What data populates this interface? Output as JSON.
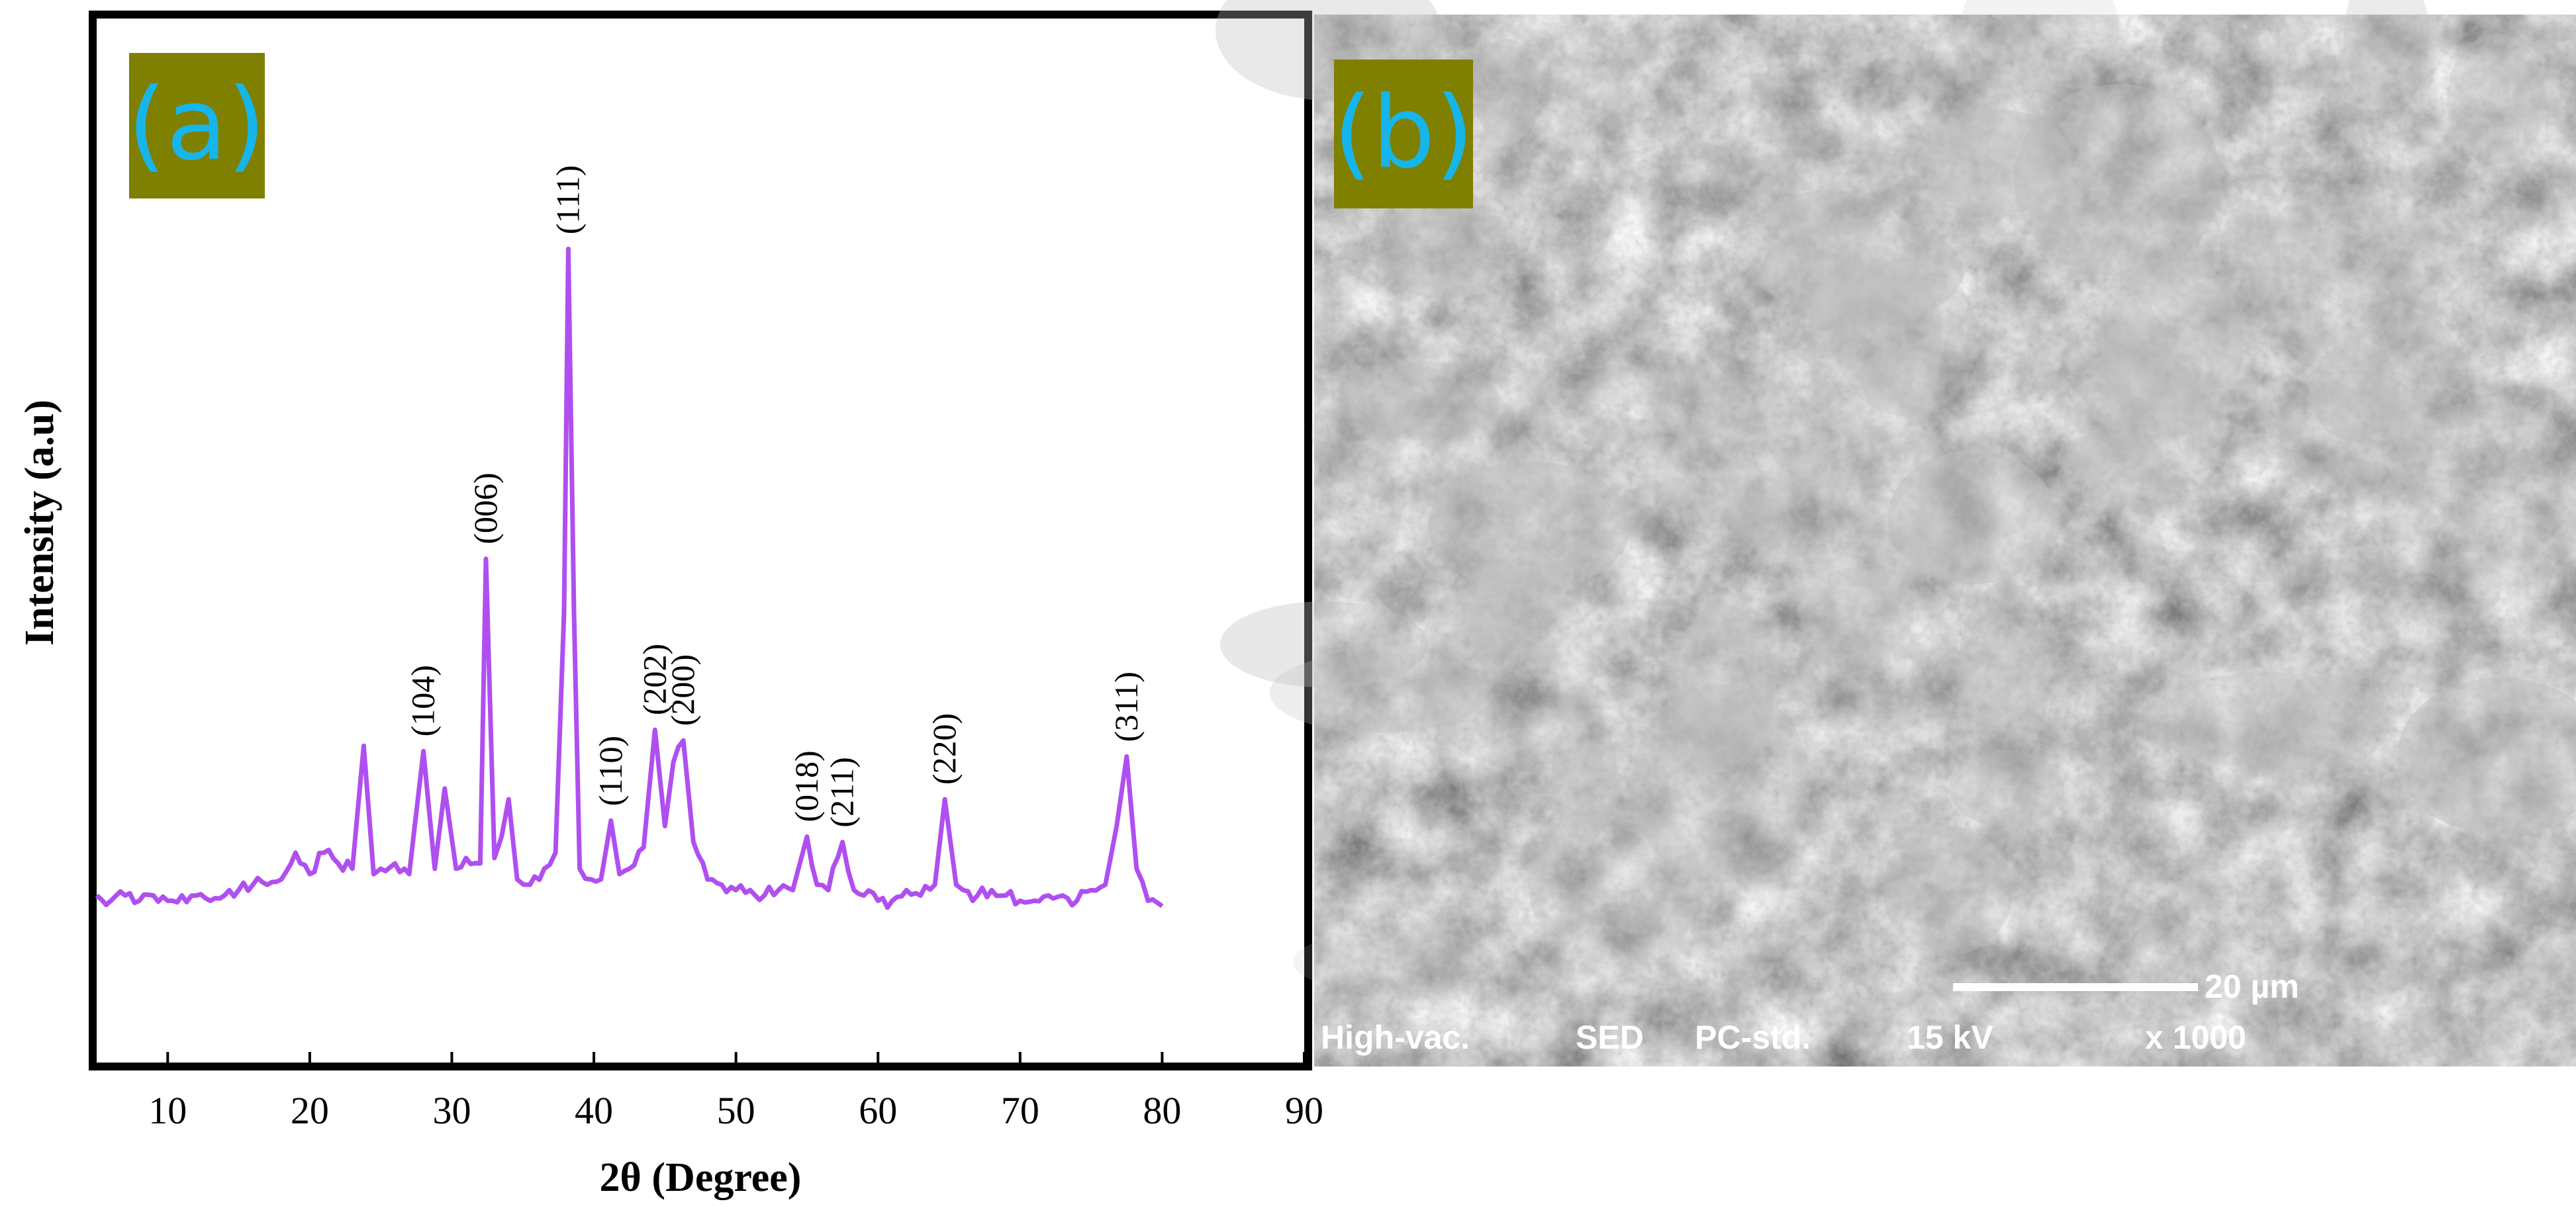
{
  "panel_a": {
    "label": "(a)",
    "label_bg_color": "#7f7f00",
    "label_text_color": "#16b5ea"
  },
  "panel_b": {
    "label": "(b)",
    "label_bg_color": "#7f7f00",
    "label_text_color": "#16b5ea",
    "image_description_colors": {
      "background": "#4a4a4a",
      "particles": "#bdbdbd"
    },
    "scale_bar": {
      "label": "20 µm"
    },
    "info_bar": [
      "High-vac.",
      "SED",
      "PC-std.",
      "15 kV",
      "x 1000"
    ]
  },
  "chart_data": {
    "type": "line",
    "xlabel": "2θ (Degree)",
    "ylabel": "Intensity (a.u)",
    "xlim": [
      5,
      90
    ],
    "xticks": [
      10,
      20,
      30,
      40,
      50,
      60,
      70,
      80,
      90
    ],
    "ylim": [
      0,
      130
    ],
    "y_ticks_shown": false,
    "grid": false,
    "line_color": "#b04ff0",
    "x": [
      5,
      6,
      7,
      8,
      9,
      10,
      11,
      12,
      13,
      14,
      15,
      16,
      17,
      18,
      19,
      20,
      21,
      22,
      23,
      23.8,
      24.5,
      25,
      26,
      27,
      28,
      28.8,
      29.5,
      30.3,
      31,
      32,
      32.4,
      33,
      33.5,
      34,
      34.6,
      35.5,
      36.5,
      37.3,
      37.9,
      38.2,
      38.6,
      39,
      39.8,
      40.5,
      41.2,
      41.8,
      42.5,
      43.5,
      44.3,
      45,
      45.6,
      46.3,
      47,
      48,
      49,
      50,
      51,
      52,
      53,
      54,
      55,
      55.7,
      56.5,
      57.5,
      58.3,
      59,
      60,
      61,
      62,
      63,
      64,
      64.7,
      65.5,
      66,
      67,
      68,
      69,
      70,
      71,
      72,
      73,
      74,
      75,
      76,
      76.8,
      77.5,
      78.2,
      79,
      80
    ],
    "y": [
      7,
      6,
      7,
      6,
      7,
      6,
      7,
      7,
      6,
      7,
      8,
      9,
      9,
      10,
      15,
      11,
      15,
      13,
      12,
      35,
      11,
      12,
      13,
      11,
      34,
      12,
      27,
      12,
      14,
      13,
      70,
      14,
      18,
      25,
      10,
      9,
      12,
      15,
      60,
      128,
      60,
      12,
      10,
      10,
      21,
      11,
      12,
      16,
      38,
      20,
      32,
      36,
      17,
      10,
      9,
      8,
      8,
      7,
      8,
      8,
      18,
      9,
      8,
      17,
      8,
      7,
      6,
      6,
      8,
      7,
      9,
      25,
      9,
      8,
      7,
      8,
      7,
      6,
      6,
      7,
      7,
      6,
      8,
      9,
      20,
      33,
      12,
      6,
      5
    ],
    "peak_labels": [
      {
        "x": 28,
        "y": 34,
        "text": "(104)"
      },
      {
        "x": 32.4,
        "y": 70,
        "text": "(006)"
      },
      {
        "x": 38.2,
        "y": 128,
        "text": "(111)"
      },
      {
        "x": 41.2,
        "y": 21,
        "text": "(110)"
      },
      {
        "x": 44.3,
        "y": 38,
        "text": "(202)"
      },
      {
        "x": 46.3,
        "y": 36,
        "text": "(200)"
      },
      {
        "x": 55,
        "y": 18,
        "text": "(018)"
      },
      {
        "x": 57.5,
        "y": 17,
        "text": "(211)"
      },
      {
        "x": 64.7,
        "y": 25,
        "text": "(220)"
      },
      {
        "x": 77.5,
        "y": 33,
        "text": "(311)"
      }
    ]
  }
}
